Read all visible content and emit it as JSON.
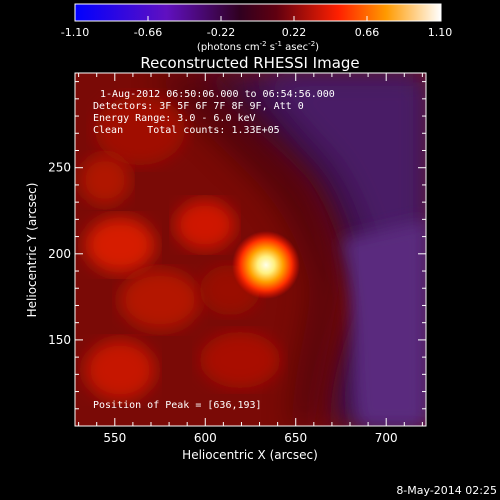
{
  "colorbar": {
    "ticks": [
      "-1.10",
      "-0.66",
      "-0.22",
      "0.22",
      "0.66",
      "1.10"
    ],
    "units_label_main": "(photons cm",
    "units_exp1": "-2",
    "units_mid": " s",
    "units_exp2": "-1",
    "units_end": " asec",
    "units_exp3": "-2",
    "units_close": ")"
  },
  "chart_data": {
    "type": "heatmap",
    "title": "Reconstructed RHESSI Image",
    "xlabel": "Heliocentric X (arcsec)",
    "ylabel": "Heliocentric Y (arcsec)",
    "xlim": [
      528,
      722
    ],
    "ylim": [
      100,
      305
    ],
    "xticks": [
      550,
      600,
      650,
      700
    ],
    "yticks": [
      150,
      200,
      250
    ],
    "colorbar_range": [
      -1.1,
      1.1
    ],
    "peak": [
      636,
      193
    ],
    "annotations": [
      "1-Aug-2012 06:50:06.000 to 06:54:56.000",
      "Detectors: 3F 5F 6F 7F 8F 9F, Att 0",
      "Energy Range: 3.0 - 6.0 keV",
      "Clean    Total counts: 1.33E+05"
    ],
    "peak_label": "Position of Peak = [636,193]"
  },
  "footer": {
    "date": "8-May-2014 02:25"
  }
}
